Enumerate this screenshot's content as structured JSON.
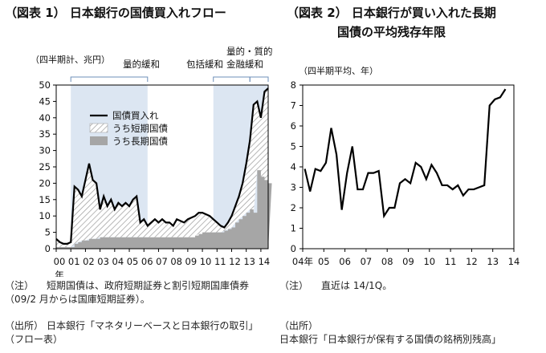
{
  "fig1": {
    "title": "（図表 1） 日本銀行の国債買入れフロー",
    "unit_label": "（四半期計、兆円）",
    "regimes": [
      "量的緩和",
      "包括緩和",
      "量的・質的",
      "金融緩和"
    ],
    "x_ticks": [
      "00",
      "01",
      "02",
      "03",
      "04",
      "05",
      "06",
      "07",
      "08",
      "09",
      "10",
      "11",
      "12",
      "13",
      "14"
    ],
    "x_unit": "年",
    "y_ticks": [
      "0",
      "5",
      "10",
      "15",
      "20",
      "25",
      "30",
      "35",
      "40",
      "45",
      "50"
    ],
    "legend": {
      "total": "国債買入れ",
      "short": "うち短期国債",
      "long": "うち長期国債"
    },
    "notes": [
      {
        "label": "（注）",
        "text": "短期国債は、政府短期証券と割引短期国庫債券（09/2 月からは国庫短期証券）。"
      },
      {
        "label": "（出所）",
        "text": "日本銀行「マネタリーベースと日本銀行の取引」（フロー表）"
      }
    ]
  },
  "fig2": {
    "title_line1": "（図表 2） 日本銀行が買い入れた長期",
    "title_line2": "国債の平均残存年限",
    "unit_label": "（四半期平均、年）",
    "x_ticks": [
      "04年",
      "05",
      "06",
      "07",
      "08",
      "09",
      "10",
      "11",
      "12",
      "13",
      "14"
    ],
    "y_ticks": [
      "0",
      "1",
      "2",
      "3",
      "4",
      "5",
      "6",
      "7",
      "8"
    ],
    "notes": [
      {
        "label": "（注）",
        "text": "直近は 14/1Q。"
      },
      {
        "label": "（出所）",
        "text": "日本銀行「日本銀行が保有する国債の銘柄別残高」"
      }
    ]
  },
  "chart_data": [
    {
      "type": "area",
      "title": "（図表 1） 日本銀行の国債買入れフロー",
      "ylabel": "（四半期計、兆円）",
      "xlabel": "年",
      "ylim": [
        0,
        50
      ],
      "x_range": [
        "2000Q1",
        "2014Q2"
      ],
      "shaded_periods": [
        {
          "label": "量的緩和",
          "start": 2001.0,
          "end": 2006.25
        },
        {
          "label": "包括緩和",
          "start": 2010.75,
          "end": 2013.25
        },
        {
          "label": "量的・質的金融緩和",
          "start": 2013.25,
          "end": 2014.5
        }
      ],
      "series": [
        {
          "name": "国債買入れ",
          "style": "line",
          "values": [
            3,
            2,
            1.5,
            1.5,
            2,
            19,
            18,
            16,
            21,
            26,
            21,
            20,
            12,
            16,
            13,
            15,
            12,
            14,
            13,
            14,
            13,
            15,
            16,
            8,
            9,
            7,
            8,
            9,
            8,
            9,
            8,
            8,
            7,
            9,
            8.5,
            8,
            9,
            9.5,
            10,
            11,
            11,
            10.5,
            10,
            9,
            8,
            7,
            6.5,
            8,
            10,
            13,
            16,
            20,
            26,
            33,
            44,
            45,
            40,
            48,
            49
          ]
        },
        {
          "name": "うち短期国債",
          "style": "hatch-stack",
          "values": []
        },
        {
          "name": "うち長期国債",
          "style": "gray-stack",
          "values": [
            0.5,
            0.5,
            0.5,
            0.5,
            0.5,
            1.5,
            2,
            2.5,
            2.5,
            3,
            3,
            3,
            3.5,
            3.5,
            3.5,
            3.5,
            3.5,
            3.5,
            3.5,
            3.5,
            3.5,
            3.5,
            3.5,
            3.5,
            3.5,
            3.5,
            3.5,
            3.5,
            3.5,
            3.5,
            3.5,
            3.5,
            3.5,
            3.5,
            3.5,
            3.5,
            3.5,
            3.5,
            4,
            4.5,
            5,
            5,
            5,
            5,
            5,
            5,
            5.5,
            6,
            6.5,
            8,
            9,
            10,
            11,
            12,
            11,
            24,
            22,
            21,
            20
          ]
        }
      ]
    },
    {
      "type": "line",
      "title": "（図表 2） 日本銀行が買い入れた長期国債の平均残存年限",
      "ylabel": "（四半期平均、年）",
      "xlabel": "",
      "ylim": [
        0,
        8
      ],
      "x_range": [
        "2004Q1",
        "2014Q1"
      ],
      "series": [
        {
          "name": "",
          "values": [
            3.9,
            2.8,
            3.9,
            3.8,
            4.2,
            5.9,
            4.6,
            1.9,
            3.7,
            5.0,
            2.9,
            2.9,
            3.7,
            3.7,
            3.8,
            1.6,
            2.0,
            2.0,
            3.2,
            3.4,
            3.2,
            4.2,
            4.0,
            3.4,
            4.1,
            3.7,
            3.1,
            3.1,
            2.9,
            3.1,
            2.6,
            2.9,
            2.9,
            3.0,
            3.1,
            7.0,
            7.3,
            7.4,
            7.8
          ]
        }
      ]
    }
  ]
}
